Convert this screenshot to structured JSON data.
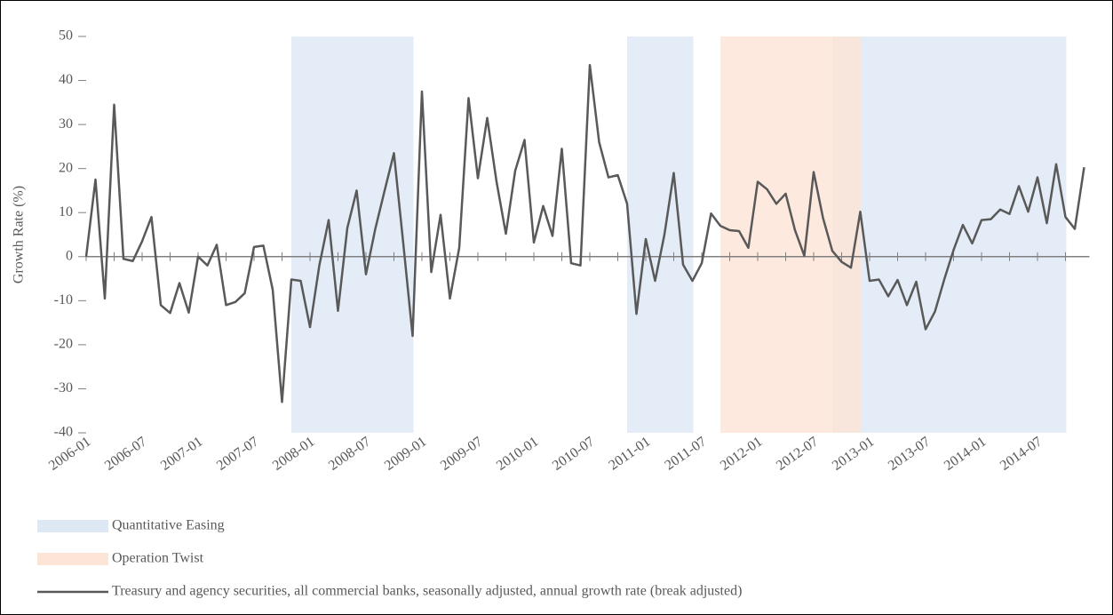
{
  "chart_data": {
    "type": "line",
    "y_label": "Growth Rate (%)",
    "categories": [
      "2006-01",
      null,
      null,
      null,
      null,
      null,
      "2006-07",
      null,
      null,
      null,
      null,
      null,
      "2007-01",
      null,
      null,
      null,
      null,
      null,
      "2007-07",
      null,
      null,
      null,
      null,
      null,
      "2008-01",
      null,
      null,
      null,
      null,
      null,
      "2008-07",
      null,
      null,
      null,
      null,
      null,
      "2009-01",
      null,
      null,
      null,
      null,
      null,
      "2009-07",
      null,
      null,
      null,
      null,
      null,
      "2010-01",
      null,
      null,
      null,
      null,
      null,
      "2010-07",
      null,
      null,
      null,
      null,
      null,
      "2011-01",
      null,
      null,
      null,
      null,
      null,
      "2011-07",
      null,
      null,
      null,
      null,
      null,
      "2012-01",
      null,
      null,
      null,
      null,
      null,
      "2012-07",
      null,
      null,
      null,
      null,
      null,
      "2013-01",
      null,
      null,
      null,
      null,
      null,
      "2013-07",
      null,
      null,
      null,
      null,
      null,
      "2014-01",
      null,
      null,
      null,
      null,
      null,
      "2014-07",
      null,
      null,
      null,
      null,
      null
    ],
    "series": [
      {
        "name": "Treasury and agency securities, all commercial banks, seasonally adjusted, annual growth rate (break adjusted)",
        "color": "#595959",
        "values": [
          0,
          17.5,
          -9.5,
          34.5,
          -0.5,
          -1,
          3.5,
          9,
          -11,
          -12.8,
          -6,
          -12.7,
          0,
          -2,
          2.7,
          -11,
          -10.3,
          -8.3,
          2.2,
          2.5,
          -7.5,
          -33,
          -5.2,
          -5.5,
          -16,
          -2,
          8.3,
          -12.3,
          6.5,
          15,
          -4,
          6.3,
          15,
          23.5,
          3,
          -18,
          37.5,
          -3.5,
          9.5,
          -9.5,
          2,
          36,
          17.8,
          31.5,
          17,
          5.2,
          19.5,
          26.5,
          3.2,
          11.5,
          4.7,
          24.5,
          -1.5,
          -2,
          43.5,
          26,
          18,
          18.5,
          12,
          -13,
          4,
          -5.5,
          5,
          19,
          -1.8,
          -5.5,
          -1.5,
          9.8,
          7,
          6,
          5.8,
          2,
          17,
          15.3,
          12,
          14.3,
          6,
          0.2,
          19.2,
          8.8,
          1.3,
          -1.2,
          -2.5,
          10.2,
          -5.5,
          -5.2,
          -9,
          -5.3,
          -11,
          -5.7,
          -16.5,
          -12.5,
          -5.2,
          1.5,
          7.2,
          3,
          8.3,
          8.5,
          10.7,
          9.7,
          16,
          10.2,
          18,
          7.6,
          21,
          9,
          6.3,
          20.3
        ]
      }
    ],
    "regions": [
      {
        "name": "Quantitative Easing",
        "color": "#dde8f5",
        "spans": [
          {
            "start": 22,
            "end": 35
          },
          {
            "start": 58,
            "end": 65
          },
          {
            "start": 80,
            "end": 105
          }
        ]
      },
      {
        "name": "Operation Twist",
        "color": "#fce4d6",
        "spans": [
          {
            "start": 68,
            "end": 83
          }
        ]
      }
    ],
    "ylim": [
      -40,
      50
    ],
    "yticks": [
      -40,
      -30,
      -20,
      -10,
      0,
      10,
      20,
      30,
      40,
      50
    ]
  }
}
